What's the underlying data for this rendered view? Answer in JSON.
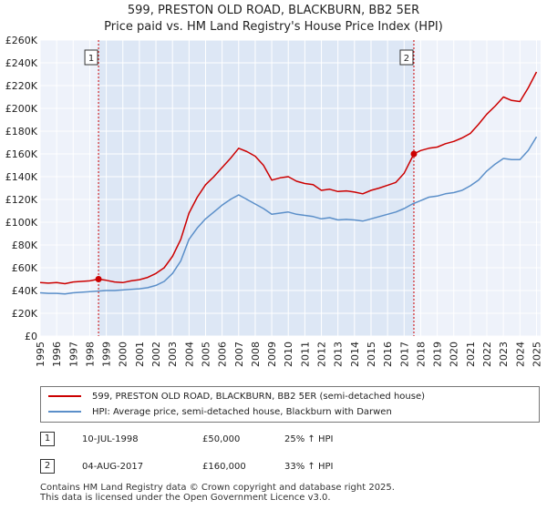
{
  "title_line1": "599, PRESTON OLD ROAD, BLACKBURN, BB2 5ER",
  "title_line2": "Price paid vs. HM Land Registry's House Price Index (HPI)",
  "chart_data": {
    "type": "line",
    "xlim": [
      1995.0,
      2025.25
    ],
    "ylim": [
      0,
      260000
    ],
    "y_ticks": [
      0,
      20000,
      40000,
      60000,
      80000,
      100000,
      120000,
      140000,
      160000,
      180000,
      200000,
      220000,
      240000,
      260000
    ],
    "y_tick_labels": [
      "£0",
      "£20K",
      "£40K",
      "£60K",
      "£80K",
      "£100K",
      "£120K",
      "£140K",
      "£160K",
      "£180K",
      "£200K",
      "£220K",
      "£240K",
      "£260K"
    ],
    "x_ticks": [
      1995,
      1996,
      1997,
      1998,
      1999,
      2000,
      2001,
      2002,
      2003,
      2004,
      2005,
      2006,
      2007,
      2008,
      2009,
      2010,
      2011,
      2012,
      2013,
      2014,
      2015,
      2016,
      2017,
      2018,
      2019,
      2020,
      2021,
      2022,
      2023,
      2024,
      2025
    ],
    "x_tick_labels": [
      "1995",
      "1996",
      "1997",
      "1998",
      "1999",
      "2000",
      "2001",
      "2002",
      "2003",
      "2004",
      "2005",
      "2006",
      "2007",
      "2008",
      "2009",
      "2010",
      "2011",
      "2012",
      "2013",
      "2014",
      "2015",
      "2016",
      "2017",
      "2018",
      "2019",
      "2020",
      "2021",
      "2022",
      "2023",
      "2024",
      "2025"
    ],
    "series": [
      {
        "name": "599, PRESTON OLD ROAD, BLACKBURN, BB2 5ER (semi-detached house)",
        "color": "#cc0000",
        "x": [
          1995.0,
          1995.5,
          1996.0,
          1996.5,
          1997.0,
          1997.5,
          1998.0,
          1998.53,
          1999.0,
          1999.5,
          2000.0,
          2000.5,
          2001.0,
          2001.5,
          2002.0,
          2002.5,
          2003.0,
          2003.5,
          2004.0,
          2004.5,
          2005.0,
          2005.5,
          2006.0,
          2006.5,
          2007.0,
          2007.5,
          2008.0,
          2008.5,
          2009.0,
          2009.5,
          2010.0,
          2010.5,
          2011.0,
          2011.5,
          2012.0,
          2012.5,
          2013.0,
          2013.5,
          2014.0,
          2014.5,
          2015.0,
          2015.5,
          2016.0,
          2016.5,
          2017.0,
          2017.59,
          2018.0,
          2018.5,
          2019.0,
          2019.5,
          2020.0,
          2020.5,
          2021.0,
          2021.5,
          2022.0,
          2022.5,
          2023.0,
          2023.5,
          2024.0,
          2024.5,
          2025.0
        ],
        "values": [
          47000,
          46500,
          47000,
          46000,
          47500,
          48000,
          48500,
          50000,
          49000,
          47500,
          47000,
          48500,
          49500,
          51500,
          55000,
          60000,
          70000,
          85000,
          108000,
          122000,
          133000,
          140000,
          148000,
          156000,
          165000,
          162000,
          158000,
          150000,
          137000,
          139000,
          140000,
          136000,
          134000,
          133000,
          128000,
          129000,
          127000,
          127500,
          126500,
          125000,
          128000,
          130000,
          132500,
          135000,
          143000,
          160000,
          163000,
          165000,
          166000,
          169000,
          171000,
          174000,
          178000,
          186000,
          195000,
          202000,
          210000,
          207000,
          206000,
          218000,
          232000
        ]
      },
      {
        "name": "HPI: Average price, semi-detached house, Blackburn with Darwen",
        "color": "#5b8fc9",
        "x": [
          1995.0,
          1995.5,
          1996.0,
          1996.5,
          1997.0,
          1997.5,
          1998.0,
          1998.5,
          1999.0,
          1999.5,
          2000.0,
          2000.5,
          2001.0,
          2001.5,
          2002.0,
          2002.5,
          2003.0,
          2003.5,
          2004.0,
          2004.5,
          2005.0,
          2005.5,
          2006.0,
          2006.5,
          2007.0,
          2007.5,
          2008.0,
          2008.5,
          2009.0,
          2009.5,
          2010.0,
          2010.5,
          2011.0,
          2011.5,
          2012.0,
          2012.5,
          2013.0,
          2013.5,
          2014.0,
          2014.5,
          2015.0,
          2015.5,
          2016.0,
          2016.5,
          2017.0,
          2017.5,
          2018.0,
          2018.5,
          2019.0,
          2019.5,
          2020.0,
          2020.5,
          2021.0,
          2021.5,
          2022.0,
          2022.5,
          2023.0,
          2023.5,
          2024.0,
          2024.5,
          2025.0
        ],
        "values": [
          38000,
          37500,
          37500,
          37000,
          38000,
          38500,
          39000,
          39500,
          40000,
          40000,
          40500,
          41000,
          41500,
          42500,
          44500,
          48000,
          55000,
          66000,
          85000,
          95000,
          103000,
          109000,
          115000,
          120000,
          124000,
          120000,
          116000,
          112000,
          107000,
          108000,
          109000,
          107000,
          106000,
          105000,
          103000,
          104000,
          102000,
          102500,
          102000,
          101000,
          103000,
          105000,
          107000,
          109000,
          112000,
          116000,
          119000,
          122000,
          123000,
          125000,
          126000,
          128000,
          132000,
          137000,
          145000,
          151000,
          156000,
          155000,
          155000,
          163000,
          175000
        ]
      }
    ],
    "events": [
      {
        "label": "1",
        "x": 1998.53,
        "value": 50000
      },
      {
        "label": "2",
        "x": 2017.59,
        "value": 160000
      }
    ]
  },
  "legend": {
    "red": "599, PRESTON OLD ROAD, BLACKBURN, BB2 5ER (semi-detached house)",
    "blue": "HPI: Average price, semi-detached house, Blackburn with Darwen"
  },
  "transactions": [
    {
      "num": "1",
      "date": "10-JUL-1998",
      "price": "£50,000",
      "hpi": "25% ↑ HPI"
    },
    {
      "num": "2",
      "date": "04-AUG-2017",
      "price": "£160,000",
      "hpi": "33% ↑ HPI"
    }
  ],
  "footer_line1": "Contains HM Land Registry data © Crown copyright and database right 2025.",
  "footer_line2": "This data is licensed under the Open Government Licence v3.0."
}
